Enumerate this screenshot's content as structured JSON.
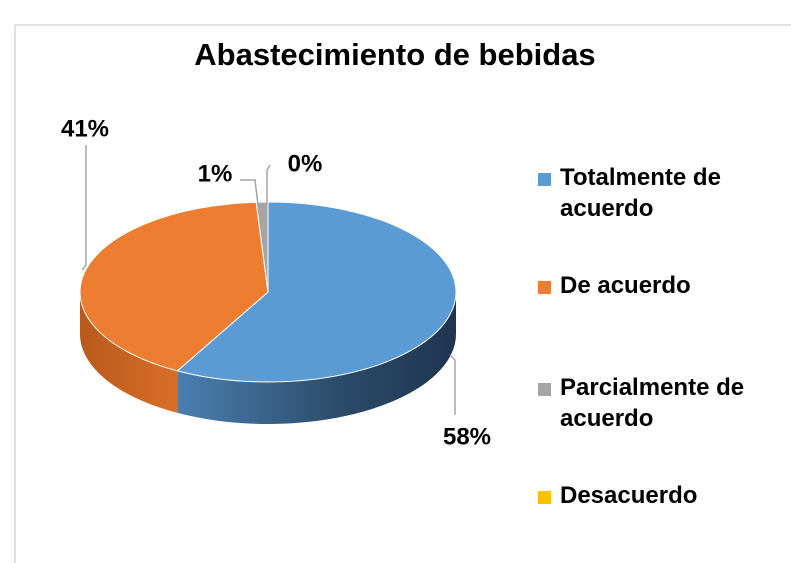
{
  "chart_data": {
    "type": "pie3d",
    "title": "Abastecimiento de bebidas",
    "categories": [
      "Totalmente de acuerdo",
      "De acuerdo",
      "Parcialmente de acuerdo",
      "Desacuerdo"
    ],
    "values": [
      58,
      41,
      1,
      0
    ],
    "value_labels": [
      "58%",
      "41%",
      "1%",
      "0%"
    ],
    "colors": [
      "#5b9bd5",
      "#ed7d31",
      "#a5a5a5",
      "#ffc000"
    ]
  }
}
